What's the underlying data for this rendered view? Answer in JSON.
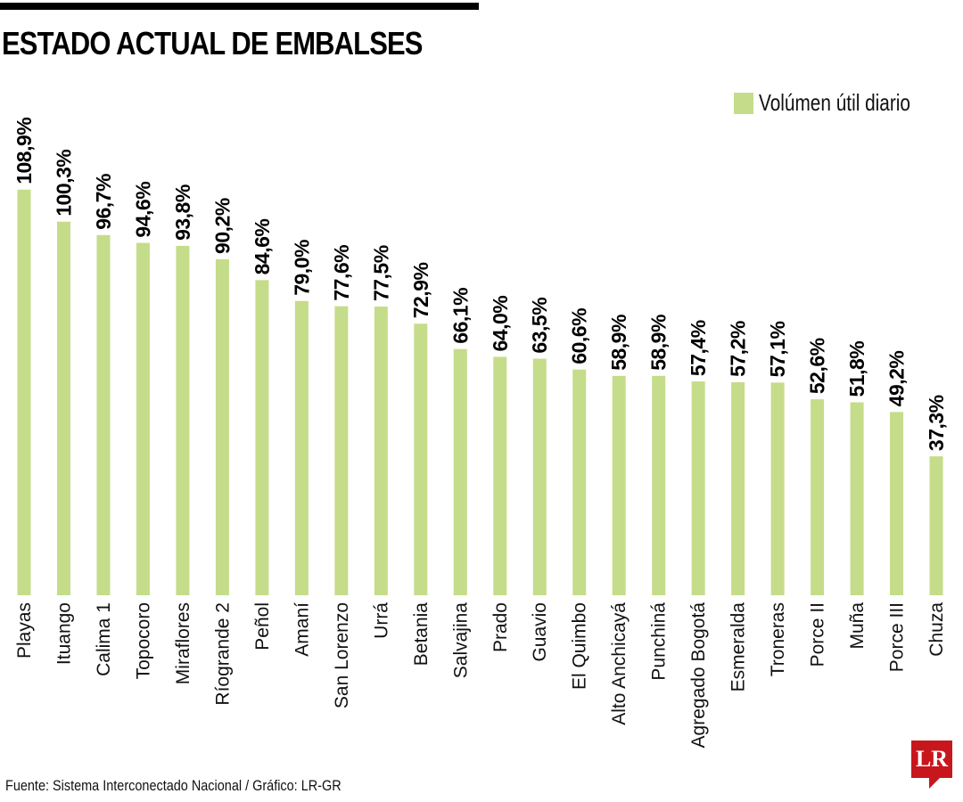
{
  "chart_data": {
    "type": "bar",
    "title": "ESTADO ACTUAL DE EMBALSES",
    "xlabel": "",
    "ylabel": "",
    "ylim": [
      0,
      110
    ],
    "grid": false,
    "legend": {
      "position": "top-right",
      "entries": [
        "Volúmen útil diario"
      ]
    },
    "categories": [
      "Playas",
      "Ituango",
      "Calima 1",
      "Topocoro",
      "Miraflores",
      "Ríogrande 2",
      "Peñol",
      "Amaní",
      "San Lorenzo",
      "Urrá",
      "Betania",
      "Salvajina",
      "Prado",
      "Guavio",
      "El Quimbo",
      "Alto Anchicayá",
      "Punchiná",
      "Agregado Bogotá",
      "Esmeralda",
      "Troneras",
      "Porce II",
      "Muña",
      "Porce III",
      "Chuza"
    ],
    "series": [
      {
        "name": "Volúmen útil diario",
        "color": "#c5dc8a",
        "values": [
          108.9,
          100.3,
          96.7,
          94.6,
          93.8,
          90.2,
          84.6,
          79.0,
          77.6,
          77.5,
          72.9,
          66.1,
          64.0,
          63.5,
          60.6,
          58.9,
          58.9,
          57.4,
          57.2,
          57.1,
          52.6,
          51.8,
          49.2,
          37.3
        ]
      }
    ],
    "value_labels": [
      "108,9%",
      "100,3%",
      "96,7%",
      "94,6%",
      "93,8%",
      "90,2%",
      "84,6%",
      "79,0%",
      "77,6%",
      "77,5%",
      "72,9%",
      "66,1%",
      "64,0%",
      "63,5%",
      "60,6%",
      "58,9%",
      "58,9%",
      "57,4%",
      "57,2%",
      "57,1%",
      "52,6%",
      "51,8%",
      "49,2%",
      "37,3%"
    ]
  },
  "source": "Fuente: Sistema Interconectado Nacional / Gráfico: LR-GR",
  "logo": "LR"
}
